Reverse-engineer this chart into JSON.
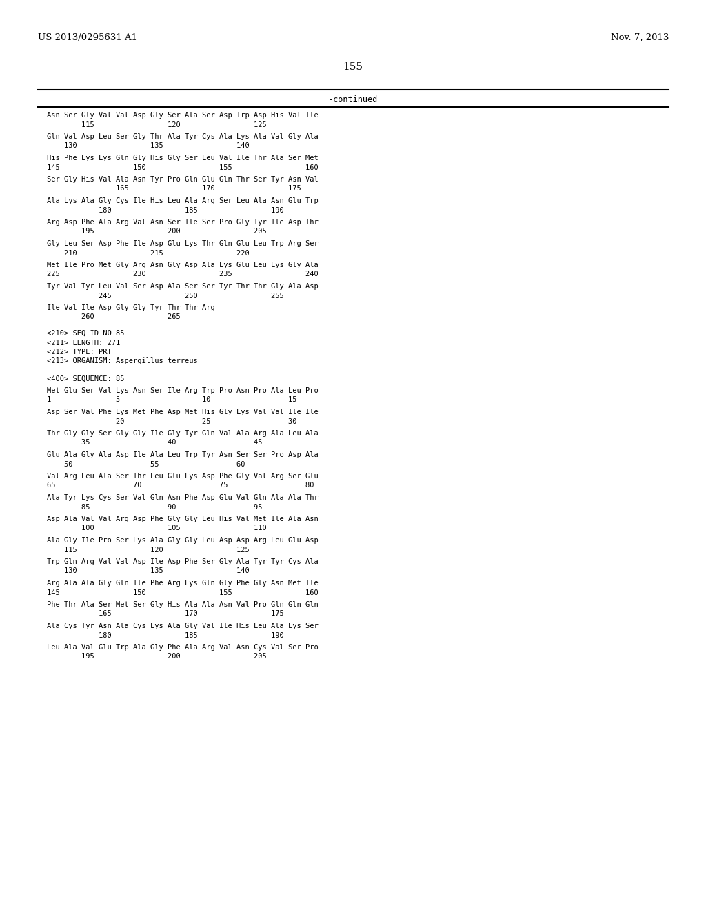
{
  "header_left": "US 2013/0295631 A1",
  "header_right": "Nov. 7, 2013",
  "page_number": "155",
  "continued_label": "-continued",
  "background_color": "#ffffff",
  "text_color": "#000000",
  "line_blocks": [
    [
      "Asn Ser Gly Val Val Asp Gly Ser Ala Ser Asp Trp Asp His Val Ile",
      "        115                 120                 125"
    ],
    [
      "Gln Val Asp Leu Ser Gly Thr Ala Tyr Cys Ala Lys Ala Val Gly Ala",
      "    130                 135                 140"
    ],
    [
      "His Phe Lys Lys Gln Gly His Gly Ser Leu Val Ile Thr Ala Ser Met",
      "145                 150                 155                 160"
    ],
    [
      "Ser Gly His Val Ala Asn Tyr Pro Gln Glu Gln Thr Ser Tyr Asn Val",
      "                165                 170                 175"
    ],
    [
      "Ala Lys Ala Gly Cys Ile His Leu Ala Arg Ser Leu Ala Asn Glu Trp",
      "            180                 185                 190"
    ],
    [
      "Arg Asp Phe Ala Arg Val Asn Ser Ile Ser Pro Gly Tyr Ile Asp Thr",
      "        195                 200                 205"
    ],
    [
      "Gly Leu Ser Asp Phe Ile Asp Glu Lys Thr Gln Glu Leu Trp Arg Ser",
      "    210                 215                 220"
    ],
    [
      "Met Ile Pro Met Gly Arg Asn Gly Asp Ala Lys Glu Leu Lys Gly Ala",
      "225                 230                 235                 240"
    ],
    [
      "Tyr Val Tyr Leu Val Ser Asp Ala Ser Ser Tyr Thr Thr Gly Ala Asp",
      "            245                 250                 255"
    ],
    [
      "Ile Val Ile Asp Gly Gly Tyr Thr Thr Arg",
      "        260                 265"
    ]
  ],
  "meta_lines": [
    "<210> SEQ ID NO 85",
    "<211> LENGTH: 271",
    "<212> TYPE: PRT",
    "<213> ORGANISM: Aspergillus terreus",
    "",
    "<400> SEQUENCE: 85"
  ],
  "seq_blocks": [
    [
      "Met Glu Ser Val Lys Asn Ser Ile Arg Trp Pro Asn Pro Ala Leu Pro",
      "1               5                   10                  15"
    ],
    [
      "Asp Ser Val Phe Lys Met Phe Asp Met His Gly Lys Val Val Ile Ile",
      "                20                  25                  30"
    ],
    [
      "Thr Gly Gly Ser Gly Gly Ile Gly Tyr Gln Val Ala Arg Ala Leu Ala",
      "        35                  40                  45"
    ],
    [
      "Glu Ala Gly Ala Asp Ile Ala Leu Trp Tyr Asn Ser Ser Pro Asp Ala",
      "    50                  55                  60"
    ],
    [
      "Val Arg Leu Ala Ser Thr Leu Glu Lys Asp Phe Gly Val Arg Ser Glu",
      "65                  70                  75                  80"
    ],
    [
      "Ala Tyr Lys Cys Ser Val Gln Asn Phe Asp Glu Val Gln Ala Ala Thr",
      "        85                  90                  95"
    ],
    [
      "Asp Ala Val Val Arg Asp Phe Gly Gly Leu His Val Met Ile Ala Asn",
      "        100                 105                 110"
    ],
    [
      "Ala Gly Ile Pro Ser Lys Ala Gly Gly Leu Asp Asp Arg Leu Glu Asp",
      "    115                 120                 125"
    ],
    [
      "Trp Gln Arg Val Val Asp Ile Asp Phe Ser Gly Ala Tyr Tyr Cys Ala",
      "    130                 135                 140"
    ],
    [
      "Arg Ala Ala Gly Gln Ile Phe Arg Lys Gln Gly Phe Gly Asn Met Ile",
      "145                 150                 155                 160"
    ],
    [
      "Phe Thr Ala Ser Met Ser Gly His Ala Ala Asn Val Pro Gln Gln Gln",
      "            165                 170                 175"
    ],
    [
      "Ala Cys Tyr Asn Ala Cys Lys Ala Gly Val Ile His Leu Ala Lys Ser",
      "            180                 185                 190"
    ],
    [
      "Leu Ala Val Glu Trp Ala Gly Phe Ala Arg Val Asn Cys Val Ser Pro",
      "        195                 200                 205"
    ]
  ]
}
